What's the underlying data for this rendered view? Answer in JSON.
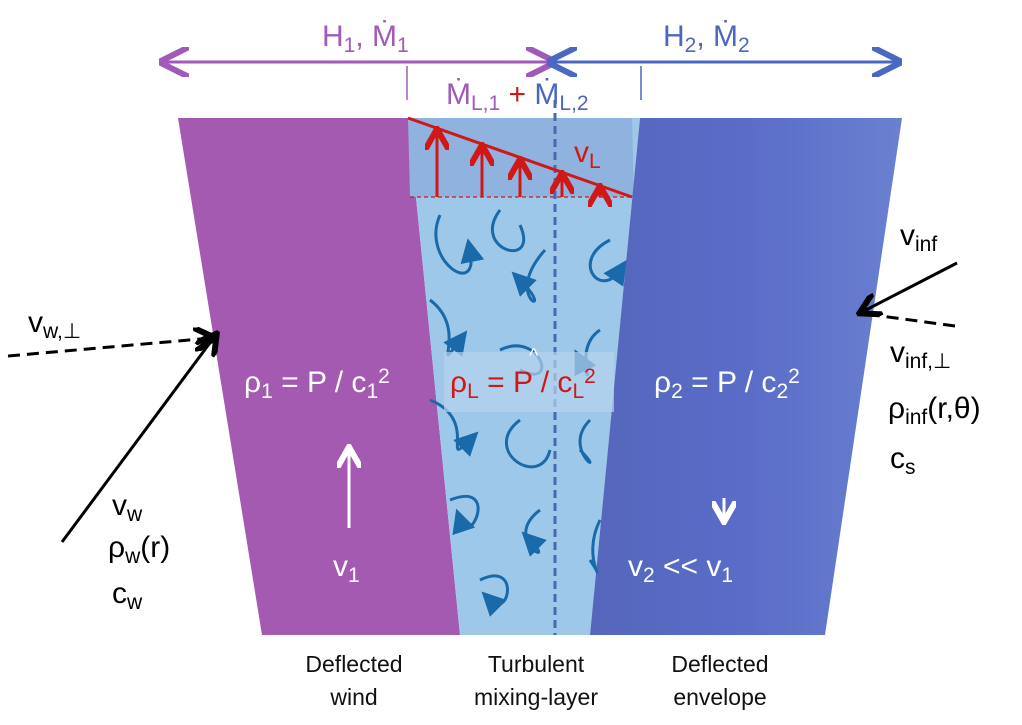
{
  "labels": {
    "left_flux": [
      "H",
      "1",
      ", Ṁ",
      "1"
    ],
    "right_flux": [
      "H",
      "2",
      ", Ṁ",
      "2"
    ],
    "mixing_flux": [
      "Ṁ",
      "L,1",
      " + ",
      "Ṁ",
      "L,2"
    ],
    "v_L": [
      "v",
      "L"
    ],
    "rho_1": [
      "ρ",
      "1",
      " = P / c",
      "1",
      "2"
    ],
    "rho_L": [
      "ρ",
      "L",
      " = P / c",
      "L",
      "2"
    ],
    "rho_L_hat": "^",
    "rho_2": [
      "ρ",
      "2",
      " = P / c",
      "2",
      "2"
    ],
    "v_1": [
      "v",
      "1"
    ],
    "v_2": [
      "v",
      "2",
      " << v",
      "1"
    ],
    "v_w_perp": [
      "v",
      "w,⊥"
    ],
    "v_w": [
      "v",
      "w"
    ],
    "rho_w": [
      "ρ",
      "w",
      "(r)"
    ],
    "c_w": [
      "c",
      "w"
    ],
    "v_inf": [
      "v",
      "inf"
    ],
    "v_inf_perp": [
      "v",
      "inf,⊥"
    ],
    "rho_inf": [
      "ρ",
      "inf",
      "(r,θ)"
    ],
    "c_s": [
      "c",
      "s"
    ]
  },
  "captions": {
    "wind": [
      "Deflected",
      "wind"
    ],
    "mixing": [
      "Turbulent",
      "mixing-layer"
    ],
    "envelope": [
      "Deflected",
      "envelope"
    ]
  }
}
